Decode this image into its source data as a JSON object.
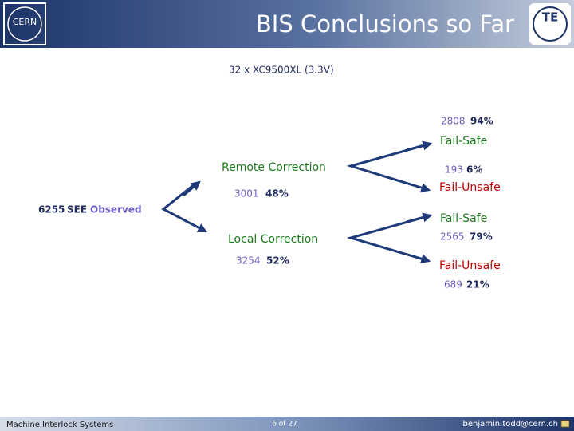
{
  "header": {
    "logo": "CERN",
    "title": "BIS Conclusions so Far",
    "badge": "TE"
  },
  "subtitle": "32 x XC9500XL (3.3V)",
  "root": {
    "count": "6255",
    "text": [
      "SEE",
      "Observed"
    ]
  },
  "branches": [
    {
      "label": "Remote Correction",
      "count": "3001",
      "percent": "48%",
      "outcomes": [
        {
          "label": "Fail-Safe",
          "count": "2808",
          "percent": "94%"
        },
        {
          "label": "Fail-Unsafe",
          "count": "193",
          "percent": "6%"
        }
      ]
    },
    {
      "label": "Local Correction",
      "count": "3254",
      "percent": "52%",
      "outcomes": [
        {
          "label": "Fail-Safe",
          "count": "2565",
          "percent": "79%"
        },
        {
          "label": "Fail-Unsafe",
          "count": "689",
          "percent": "21%"
        }
      ]
    }
  ],
  "footer": {
    "left": "Machine Interlock Systems",
    "page": "6 of 27",
    "email": "benjamin.todd@cern.ch"
  }
}
